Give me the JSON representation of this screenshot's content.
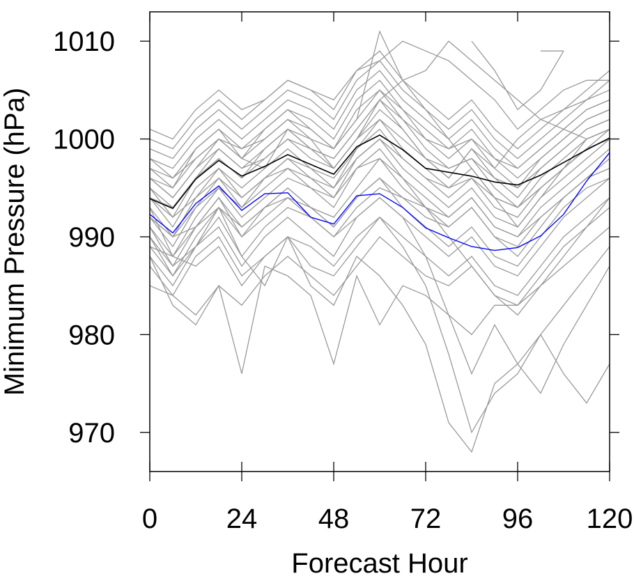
{
  "chart_data": {
    "type": "line",
    "title": "",
    "xlabel": "Forecast Hour",
    "ylabel": "Minimum Pressure (hPa)",
    "xlim": [
      0,
      120
    ],
    "ylim": [
      966,
      1013
    ],
    "x": [
      0,
      6,
      12,
      18,
      24,
      30,
      36,
      42,
      48,
      54,
      60,
      66,
      72,
      78,
      84,
      90,
      96,
      102,
      108,
      114,
      120
    ],
    "xticks": [
      "0",
      "24",
      "48",
      "72",
      "96",
      "120"
    ],
    "xtick_values": [
      0,
      24,
      48,
      72,
      96,
      120
    ],
    "yticks": [
      "970",
      "980",
      "990",
      "1000",
      "1010"
    ],
    "ytick_values": [
      970,
      980,
      990,
      1000,
      1010
    ],
    "grid": false,
    "legend": "none",
    "colors": {
      "members": "#999999",
      "mean": "#000000",
      "control": "#0000ff"
    },
    "series": [
      {
        "role": "member",
        "values": [
          996,
          994,
          997,
          999,
          997,
          998,
          1000,
          999,
          998,
          1001,
          1004,
          1001,
          998,
          996,
          999,
          997,
          1000,
          1002,
          1003,
          1004,
          1005
        ]
      },
      {
        "role": "member",
        "values": [
          997,
          996,
          998,
          1000,
          999,
          1001,
          1003,
          1002,
          1000,
          1004,
          1006,
          1003,
          1000,
          999,
          1001,
          998,
          996,
          998,
          1000,
          1002,
          1003
        ]
      },
      {
        "role": "member",
        "values": [
          994,
          991,
          995,
          997,
          995,
          997,
          999,
          997,
          996,
          999,
          1002,
          999,
          997,
          995,
          997,
          994,
          993,
          996,
          998,
          1000,
          1001
        ]
      },
      {
        "role": "member",
        "values": [
          992,
          989,
          993,
          995,
          992,
          994,
          996,
          995,
          993,
          997,
          999,
          996,
          994,
          992,
          994,
          991,
          990,
          993,
          995,
          997,
          999
        ]
      },
      {
        "role": "member",
        "values": [
          998,
          997,
          1000,
          1002,
          1000,
          1002,
          1004,
          1003,
          1001,
          1005,
          1007,
          1004,
          1002,
          1000,
          1002,
          999,
          997,
          999,
          1001,
          1003,
          1004
        ]
      },
      {
        "role": "member",
        "values": [
          995,
          992,
          996,
          998,
          996,
          999,
          1001,
          1000,
          997,
          1000,
          1003,
          1001,
          998,
          996,
          999,
          996,
          994,
          997,
          999,
          1001,
          1002
        ]
      },
      {
        "role": "member",
        "values": [
          990,
          987,
          991,
          994,
          991,
          993,
          995,
          993,
          992,
          995,
          998,
          995,
          993,
          991,
          993,
          990,
          988,
          991,
          994,
          996,
          998
        ]
      },
      {
        "role": "member",
        "values": [
          999,
          998,
          1001,
          1003,
          1001,
          1003,
          1005,
          1004,
          1002,
          1006,
          1008,
          1005,
          1003,
          1001,
          1003,
          1000,
          998,
          1000,
          1002,
          1004,
          1006
        ]
      },
      {
        "role": "member",
        "values": [
          993,
          990,
          994,
          996,
          993,
          995,
          997,
          995,
          994,
          998,
          1000,
          997,
          995,
          993,
          995,
          992,
          991,
          994,
          996,
          998,
          1000
        ]
      },
      {
        "role": "member",
        "values": [
          1000,
          999,
          1002,
          1004,
          1002,
          1004,
          1006,
          1005,
          1003,
          1007,
          1009,
          1006,
          1004,
          1002,
          1004,
          1001,
          999,
          1001,
          1003,
          1005,
          1007
        ]
      },
      {
        "role": "member",
        "values": [
          996,
          994,
          997,
          1000,
          998,
          1000,
          1002,
          1000,
          999,
          1002,
          1005,
          1002,
          1000,
          998,
          1000,
          997,
          995,
          998,
          1000,
          1002,
          1003
        ]
      },
      {
        "role": "member",
        "values": [
          991,
          988,
          992,
          995,
          993,
          996,
          998,
          996,
          995,
          999,
          1001,
          998,
          996,
          994,
          996,
          993,
          992,
          995,
          997,
          999,
          1001
        ]
      },
      {
        "role": "member",
        "values": [
          994,
          993,
          996,
          999,
          997,
          999,
          1001,
          999,
          998,
          1001,
          1004,
          1002,
          999,
          997,
          998,
          995,
          993,
          995,
          997,
          999,
          1000
        ]
      },
      {
        "role": "member",
        "values": [
          997,
          995,
          999,
          1001,
          999,
          1000,
          1002,
          1001,
          999,
          1003,
          1005,
          1003,
          1001,
          999,
          1000,
          998,
          997,
          999,
          1001,
          1003,
          1004
        ]
      },
      {
        "role": "member",
        "values": [
          995,
          993,
          996,
          998,
          996,
          998,
          1000,
          998,
          997,
          1000,
          1002,
          1000,
          998,
          997,
          998,
          996,
          995,
          997,
          999,
          1001,
          1002
        ]
      },
      {
        "role": "member",
        "values": [
          992,
          990,
          993,
          996,
          994,
          996,
          998,
          997,
          995,
          998,
          1000,
          998,
          996,
          995,
          996,
          994,
          993,
          995,
          997,
          999,
          1000
        ]
      },
      {
        "role": "member",
        "values": [
          989,
          986,
          990,
          993,
          990,
          993,
          995,
          993,
          991,
          994,
          996,
          994,
          993,
          992,
          994,
          991,
          990,
          992,
          994,
          996,
          997
        ]
      },
      {
        "role": "member",
        "values": [
          988,
          985,
          989,
          991,
          987,
          990,
          992,
          990,
          988,
          992,
          994,
          992,
          990,
          988,
          990,
          987,
          986,
          989,
          992,
          994,
          996
        ]
      },
      {
        "role": "member",
        "values": [
          987,
          984,
          988,
          990,
          986,
          988,
          990,
          989,
          987,
          990,
          992,
          990,
          988,
          986,
          988,
          985,
          984,
          987,
          990,
          992,
          994
        ]
      },
      {
        "role": "member",
        "values": [
          990,
          986,
          989,
          992,
          988,
          991,
          993,
          992,
          990,
          993,
          995,
          994,
          992,
          991,
          993,
          990,
          989,
          992,
          994,
          996,
          997
        ]
      },
      {
        "role": "member",
        "values": [
          993,
          988,
          991,
          994,
          990,
          992,
          994,
          993,
          991,
          994,
          996,
          993,
          991,
          989,
          991,
          988,
          987,
          990,
          993,
          995,
          996
        ]
      },
      {
        "role": "member",
        "values": [
          985,
          984,
          982,
          985,
          983,
          986,
          988,
          986,
          984,
          987,
          990,
          988,
          986,
          985,
          987,
          984,
          983,
          986,
          989,
          991,
          993
        ]
      },
      {
        "role": "member",
        "values": [
          988,
          983,
          981,
          985,
          976,
          987,
          986,
          984,
          977,
          986,
          981,
          985,
          984,
          982,
          980,
          983,
          983,
          985,
          987,
          989,
          991
        ]
      },
      {
        "role": "member",
        "values": [
          991,
          987,
          989,
          993,
          988,
          985,
          990,
          985,
          983,
          988,
          986,
          983,
          979,
          971,
          968,
          975,
          977,
          980,
          976,
          973,
          977
        ]
      },
      {
        "role": "member",
        "values": [
          989,
          988,
          987,
          989,
          985,
          988,
          990,
          987,
          986,
          989,
          992,
          989,
          985,
          978,
          970,
          974,
          976,
          980,
          983,
          986,
          989
        ]
      },
      {
        "role": "member",
        "values": [
          992,
          990,
          991,
          993,
          991,
          993,
          994,
          992,
          990,
          992,
          994,
          992,
          988,
          982,
          976,
          981,
          977,
          974,
          979,
          983,
          987
        ]
      },
      {
        "role": "member",
        "values": [
          994,
          992,
          994,
          997,
          994,
          996,
          997,
          996,
          994,
          997,
          998,
          996,
          993,
          990,
          987,
          984,
          982,
          985,
          988,
          991,
          994
        ]
      },
      {
        "role": "member",
        "values": [
          998,
          996,
          999,
          1001,
          998,
          1001,
          1003,
          1001,
          999,
          1002,
          1011,
          1006,
          1003,
          1000,
          997,
          994,
          991,
          994,
          997,
          1000,
          1001
        ]
      },
      {
        "role": "member",
        "values": [
          1001,
          1000,
          1003,
          1005,
          1003,
          1004,
          1006,
          1005,
          1004,
          1007,
          1008,
          1010,
          1009,
          1008,
          1006,
          1004,
          1001,
          1003,
          1005,
          1006,
          1006
        ]
      },
      {
        "role": "member",
        "values": [
          996,
          995,
          998,
          1000,
          998,
          997,
          1001,
          999,
          997,
          1000,
          1004,
          1006,
          1007,
          1010,
          1008,
          1006,
          1004,
          1002,
          1001,
          1000,
          1001
        ]
      },
      {
        "role": "member",
        "values": [
          null,
          null,
          null,
          null,
          null,
          null,
          null,
          null,
          null,
          null,
          null,
          null,
          null,
          null,
          1010,
          1007,
          1003,
          1005,
          1009,
          null,
          null
        ]
      },
      {
        "role": "member",
        "values": [
          null,
          null,
          null,
          null,
          null,
          null,
          null,
          null,
          null,
          null,
          null,
          null,
          null,
          null,
          null,
          null,
          null,
          1009,
          1009,
          null,
          null
        ]
      },
      {
        "role": "mean",
        "values": [
          993.9,
          992.9,
          995.9,
          997.8,
          996.2,
          997.2,
          998.4,
          997.4,
          996.4,
          999.2,
          1000.4,
          998.9,
          997.0,
          996.6,
          996.2,
          995.6,
          995.3,
          996.3,
          997.6,
          998.9,
          1000.1
        ]
      },
      {
        "role": "control",
        "values": [
          992.3,
          990.4,
          993.4,
          995.2,
          992.7,
          994.4,
          994.5,
          992.0,
          991.3,
          994.2,
          994.4,
          993.0,
          990.9,
          989.9,
          989.0,
          988.6,
          988.9,
          990.1,
          992.3,
          995.7,
          998.6
        ]
      }
    ]
  }
}
